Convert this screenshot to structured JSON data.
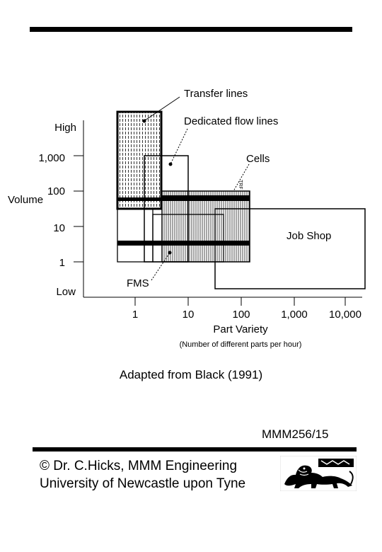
{
  "diagram": {
    "y_labels": {
      "high": "High",
      "v1000": "1,000",
      "v100": "100",
      "v10": "10",
      "v1": "1",
      "low": "Low"
    },
    "y_axis_title": "Volume",
    "x_labels": [
      "1",
      "10",
      "100",
      "1,000",
      "10,000"
    ],
    "x_axis_title": "Part Variety",
    "x_axis_subtitle": "(Number of different parts per hour)",
    "callouts": {
      "transfer_lines": "Transfer lines",
      "dedicated_flow_lines": "Dedicated flow lines",
      "cells": "Cells",
      "fms": "FMS",
      "job_shop": "Job Shop",
      "tiny_label": "TRF"
    }
  },
  "caption": "Adapted from Black (1991)",
  "slide_code": "MMM256/15",
  "footer": {
    "line1": "© Dr. C.Hicks, MMM Engineering",
    "line2": "University of Newcastle upon Tyne"
  },
  "logo_icon": "heraldic-lion-crest-icon"
}
